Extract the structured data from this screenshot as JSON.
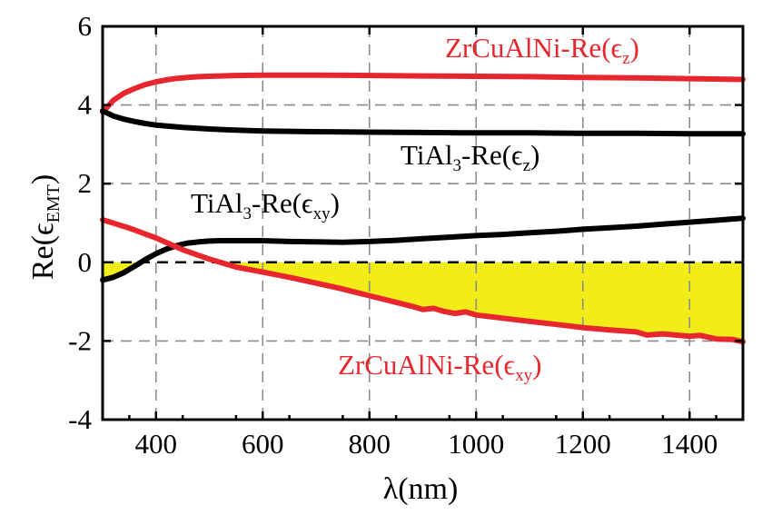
{
  "chart_data": {
    "type": "line",
    "xlabel": "λ(nm)",
    "ylabel": "Re(ϵ",
    "ylabel_sub": "EMT",
    "ylabel_close": ")",
    "xlim": [
      300,
      1500
    ],
    "ylim": [
      -4,
      6
    ],
    "xticks": [
      400,
      600,
      800,
      1000,
      1200,
      1400
    ],
    "yticks": [
      -4,
      -2,
      0,
      2,
      4,
      6
    ],
    "grid": true,
    "zero_line": {
      "y": 0,
      "style": "dashed",
      "color": "#000000"
    },
    "fill_region": {
      "between": [
        "ZrCuAlNi-Re(ϵxy)",
        "zero"
      ],
      "x_from": 420,
      "color": "#f2ec19"
    },
    "series": [
      {
        "name": "ZrCuAlNi-Re(ϵz)",
        "color": "#e8262d",
        "x": [
          300,
          320,
          340,
          360,
          380,
          400,
          420,
          440,
          460,
          480,
          500,
          550,
          600,
          650,
          700,
          800,
          900,
          1000,
          1100,
          1200,
          1300,
          1400,
          1500
        ],
        "y": [
          3.82,
          4.12,
          4.3,
          4.42,
          4.52,
          4.59,
          4.64,
          4.68,
          4.7,
          4.72,
          4.73,
          4.75,
          4.76,
          4.76,
          4.76,
          4.75,
          4.74,
          4.73,
          4.72,
          4.7,
          4.69,
          4.67,
          4.65
        ]
      },
      {
        "name": "TiAl3-Re(ϵz)",
        "color": "#000000",
        "x": [
          300,
          320,
          340,
          360,
          380,
          400,
          450,
          500,
          550,
          600,
          700,
          800,
          900,
          1000,
          1100,
          1200,
          1300,
          1400,
          1500
        ],
        "y": [
          3.85,
          3.72,
          3.64,
          3.58,
          3.53,
          3.49,
          3.43,
          3.39,
          3.36,
          3.34,
          3.32,
          3.31,
          3.3,
          3.29,
          3.29,
          3.28,
          3.28,
          3.27,
          3.27
        ]
      },
      {
        "name": "TiAl3-Re(ϵxy)",
        "color": "#000000",
        "x": [
          300,
          320,
          340,
          360,
          380,
          400,
          420,
          440,
          460,
          480,
          500,
          520,
          550,
          600,
          650,
          700,
          750,
          800,
          850,
          900,
          950,
          1000,
          1050,
          1100,
          1150,
          1200,
          1250,
          1300,
          1350,
          1400,
          1450,
          1500
        ],
        "y": [
          -0.45,
          -0.38,
          -0.26,
          -0.1,
          0.07,
          0.22,
          0.34,
          0.43,
          0.49,
          0.52,
          0.54,
          0.55,
          0.55,
          0.55,
          0.53,
          0.52,
          0.51,
          0.53,
          0.56,
          0.6,
          0.64,
          0.68,
          0.71,
          0.75,
          0.79,
          0.84,
          0.88,
          0.92,
          0.97,
          1.02,
          1.07,
          1.12
        ]
      },
      {
        "name": "ZrCuAlNi-Re(ϵxy)",
        "color": "#e8262d",
        "x": [
          300,
          350,
          400,
          420,
          450,
          500,
          550,
          600,
          650,
          700,
          750,
          800,
          830,
          860,
          880,
          900,
          920,
          940,
          960,
          980,
          1000,
          1050,
          1100,
          1150,
          1200,
          1250,
          1300,
          1320,
          1350,
          1400,
          1420,
          1450,
          1480,
          1500
        ],
        "y": [
          1.08,
          0.87,
          0.62,
          0.5,
          0.32,
          0.08,
          -0.12,
          -0.25,
          -0.38,
          -0.53,
          -0.68,
          -0.85,
          -0.95,
          -1.05,
          -1.12,
          -1.2,
          -1.17,
          -1.25,
          -1.3,
          -1.26,
          -1.34,
          -1.42,
          -1.5,
          -1.58,
          -1.66,
          -1.72,
          -1.77,
          -1.85,
          -1.82,
          -1.88,
          -1.86,
          -1.95,
          -1.96,
          -2.02
        ]
      }
    ],
    "annotations": [
      {
        "series": "ZrCuAlNi-Re(ϵz)",
        "main": "ZrCuAlNi-Re(ϵ",
        "sub": "z",
        "close": ")",
        "color": "#e8262d"
      },
      {
        "series": "TiAl3-Re(ϵz)",
        "main": "TiAl",
        "sub1": "3",
        "mid": "-Re(ϵ",
        "sub": "z",
        "close": ")",
        "color": "#000000"
      },
      {
        "series": "TiAl3-Re(ϵxy)",
        "main": "TiAl",
        "sub1": "3",
        "mid": "-Re(ϵ",
        "sub": "xy",
        "close": ")",
        "color": "#000000"
      },
      {
        "series": "ZrCuAlNi-Re(ϵxy)",
        "main": "ZrCuAlNi-Re(ϵ",
        "sub": "xy",
        "close": ")",
        "color": "#e8262d"
      }
    ]
  }
}
